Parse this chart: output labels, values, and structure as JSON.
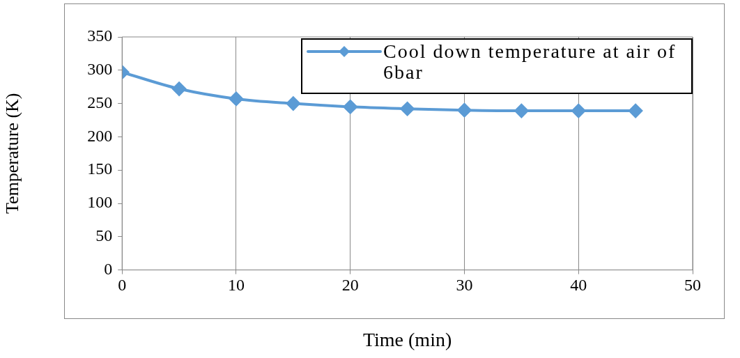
{
  "chart_data": {
    "type": "line",
    "xlabel": "Time (min)",
    "ylabel": "Temperature (K)",
    "x": [
      0,
      5,
      10,
      15,
      20,
      25,
      30,
      35,
      40,
      45
    ],
    "series": [
      {
        "name": "Cool down temperature at air of 6bar",
        "color": "#5b9bd5",
        "values": [
          297,
          272,
          257,
          250,
          245,
          242,
          240,
          239,
          239,
          239
        ]
      }
    ],
    "xlim": [
      0,
      50
    ],
    "xticks": [
      0,
      10,
      20,
      30,
      40,
      50
    ],
    "ylim": [
      0,
      350
    ],
    "yticks": [
      0,
      50,
      100,
      150,
      200,
      250,
      300,
      350
    ],
    "grid": "x",
    "legend": "top right",
    "marker": "diamond",
    "line_style": "solid"
  }
}
